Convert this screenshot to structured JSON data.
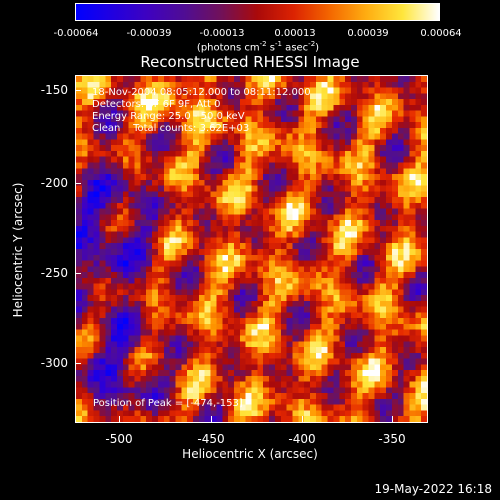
{
  "colorbar": {
    "ticks": [
      "-0.00064",
      "-0.00039",
      "-0.00013",
      "0.00013",
      "0.00039",
      "0.00064"
    ],
    "unit_prefix": "(photons cm",
    "unit_exp1": "-2",
    "unit_mid1": " s",
    "unit_exp2": "-1",
    "unit_mid2": " asec",
    "unit_exp3": "-2",
    "unit_suffix": ")"
  },
  "title": "Reconstructed RHESSI Image",
  "info": {
    "line1": "18-Nov-2004 08:05:12.000 to 08:11:12.000",
    "line2": "Detectors: 3F 6F 9F, Att 0",
    "line3": "Energy Range: 25.0 - 50.0 keV",
    "line4": "Clean    Total counts: 3.62E+03",
    "peak": "Position of Peak = [-474,-153]"
  },
  "axes": {
    "xlabel": "Heliocentric X (arcsec)",
    "ylabel": "Heliocentric Y (arcsec)",
    "xticks": [
      "-500",
      "-450",
      "-400",
      "-350"
    ],
    "yticks": [
      "-150",
      "-200",
      "-250",
      "-300"
    ]
  },
  "timestamp": "19-May-2022 16:18"
}
